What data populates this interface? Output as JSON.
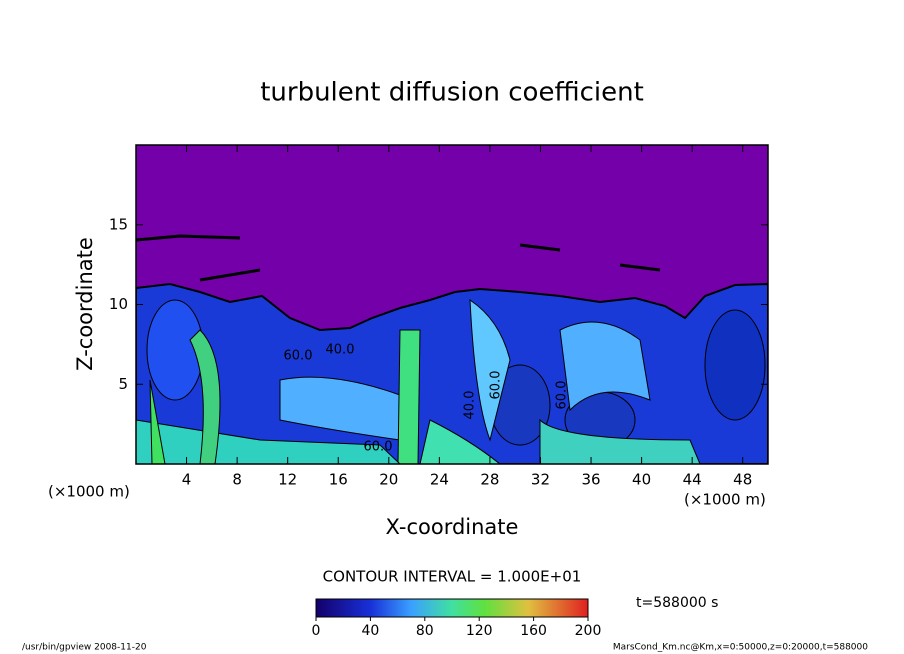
{
  "chart_data": {
    "type": "contour",
    "title": "turbulent diffusion coefficient",
    "xlabel": "X-coordinate",
    "ylabel": "Z-coordinate",
    "xunit": "(×1000 m)",
    "xlim": [
      0,
      50
    ],
    "ylim": [
      0,
      20
    ],
    "xticks": [
      4,
      8,
      12,
      16,
      20,
      24,
      28,
      32,
      36,
      40,
      44,
      48
    ],
    "yticks": [
      5,
      10,
      15
    ],
    "contour_labels": [
      "60.0",
      "40.0",
      "60.0",
      "40.0",
      "60.0",
      "60.0"
    ],
    "contour_interval": "CONTOUR INTERVAL = 1.000E+01",
    "colorbar": {
      "lim": [
        0,
        200
      ],
      "ticks": [
        0,
        40,
        80,
        120,
        160,
        200
      ]
    },
    "time": "t=588000 s"
  },
  "footer": {
    "left": "/usr/bin/gpview  2008-11-20",
    "right": "MarsCond_Km.nc@Km,x=0:50000,z=0:20000,t=588000"
  }
}
